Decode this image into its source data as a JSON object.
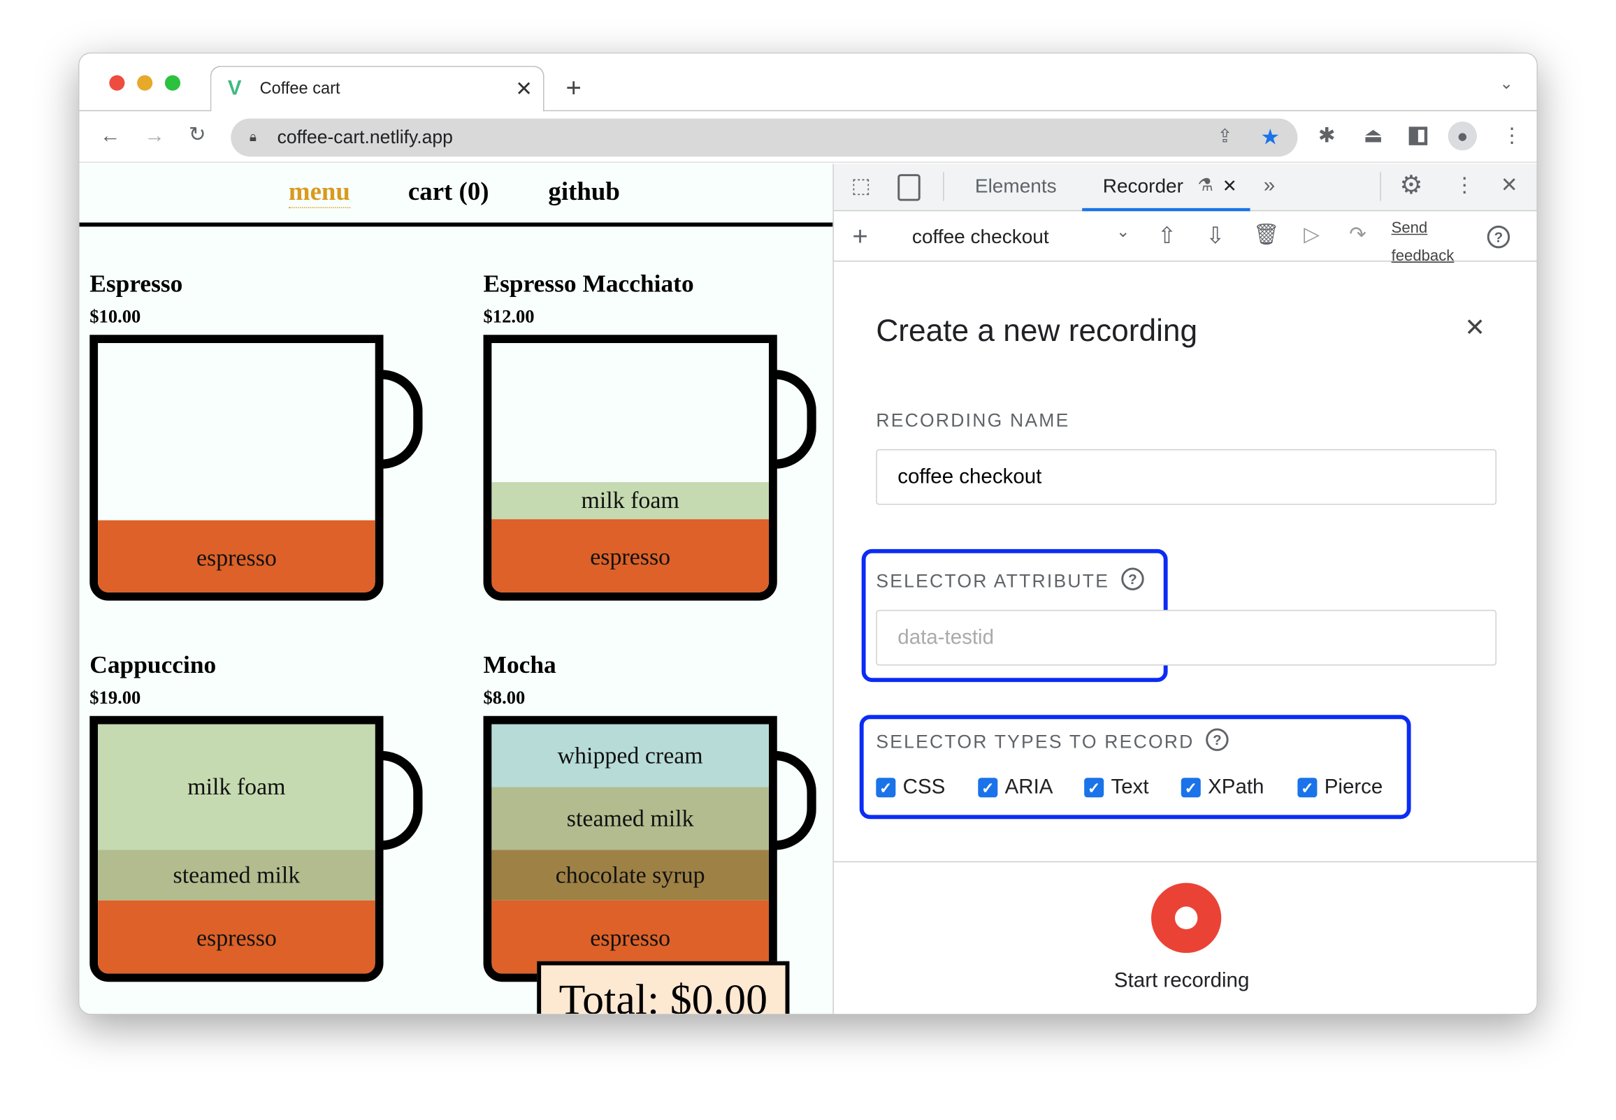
{
  "browser": {
    "tab_title": "Coffee cart",
    "url": "coffee-cart.netlify.app"
  },
  "page": {
    "nav": {
      "menu": "menu",
      "cart": "cart (0)",
      "github": "github"
    },
    "menu_color": "#d99a1e",
    "products": [
      {
        "name": "Espresso",
        "price": "$10.00",
        "layers": [
          {
            "label": "espresso",
            "color": "#dd6128"
          }
        ]
      },
      {
        "name": "Espresso Macchiato",
        "price": "$12.00",
        "layers": [
          {
            "label": "milk foam",
            "color": "#c5dab0"
          },
          {
            "label": "espresso",
            "color": "#dd6128"
          }
        ]
      },
      {
        "name": "Cappuccino",
        "price": "$19.00",
        "layers": [
          {
            "label": "milk foam",
            "color": "#c5dab0"
          },
          {
            "label": "steamed milk",
            "color": "#b3bc8f"
          },
          {
            "label": "espresso",
            "color": "#dd6128"
          }
        ]
      },
      {
        "name": "Mocha",
        "price": "$8.00",
        "layers": [
          {
            "label": "whipped cream",
            "color": "#b7dcd8"
          },
          {
            "label": "steamed milk",
            "color": "#b3bc8f"
          },
          {
            "label": "chocolate syrup",
            "color": "#9e8145"
          },
          {
            "label": "espresso",
            "color": "#dd6128"
          }
        ]
      }
    ],
    "total": "Total: $0.00"
  },
  "devtools": {
    "tabs": {
      "elements": "Elements",
      "recorder": "Recorder"
    },
    "toolbar": {
      "recording": "coffee checkout",
      "send": "Send",
      "feedback": "feedback"
    },
    "dialog": {
      "title": "Create a new recording",
      "name_label": "RECORDING NAME",
      "name_value": "coffee checkout",
      "attr_label": "SELECTOR ATTRIBUTE",
      "attr_placeholder": "data-testid",
      "types_label": "SELECTOR TYPES TO RECORD",
      "types": [
        {
          "label": "CSS",
          "checked": true
        },
        {
          "label": "ARIA",
          "checked": true
        },
        {
          "label": "Text",
          "checked": true
        },
        {
          "label": "XPath",
          "checked": true
        },
        {
          "label": "Pierce",
          "checked": true
        }
      ],
      "start": "Start recording"
    },
    "accent": "#1a73e8",
    "highlight": "#0b2cf5",
    "record": "#ea4335"
  }
}
